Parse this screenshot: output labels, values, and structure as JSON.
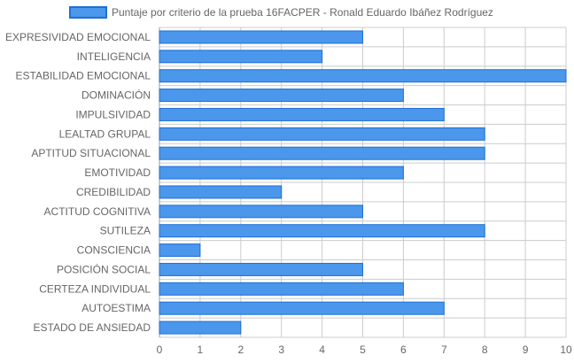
{
  "chart_data": {
    "type": "bar",
    "orientation": "horizontal",
    "legend_position": "top",
    "grid": true,
    "colors": {
      "bar_fill": "#4a97ec",
      "bar_stroke": "#1f6fd6",
      "grid": "#cccccc",
      "text": "#666666"
    },
    "categories": [
      "EXPRESIVIDAD EMOCIONAL",
      "INTELIGENCIA",
      "ESTABILIDAD EMOCIONAL",
      "DOMINACIÓN",
      "IMPULSIVIDAD",
      "LEALTAD GRUPAL",
      "APTITUD SITUACIONAL",
      "EMOTIVIDAD",
      "CREDIBILIDAD",
      "ACTITUD COGNITIVA",
      "SUTILEZA",
      "CONSCIENCIA",
      "POSICIÓN SOCIAL",
      "CERTEZA INDIVIDUAL",
      "AUTOESTIMA",
      "ESTADO DE ANSIEDAD"
    ],
    "series": [
      {
        "name": "Puntaje por criterio de la prueba 16FACPER - Ronald Eduardo Ibáñez Rodríguez",
        "values": [
          5,
          4,
          10,
          6,
          7,
          8,
          8,
          6,
          3,
          5,
          8,
          1,
          5,
          6,
          7,
          2
        ]
      }
    ],
    "xlim": [
      0,
      10
    ],
    "xticks": [
      "0",
      "1",
      "2",
      "3",
      "4",
      "5",
      "6",
      "7",
      "8",
      "9",
      "10"
    ]
  }
}
